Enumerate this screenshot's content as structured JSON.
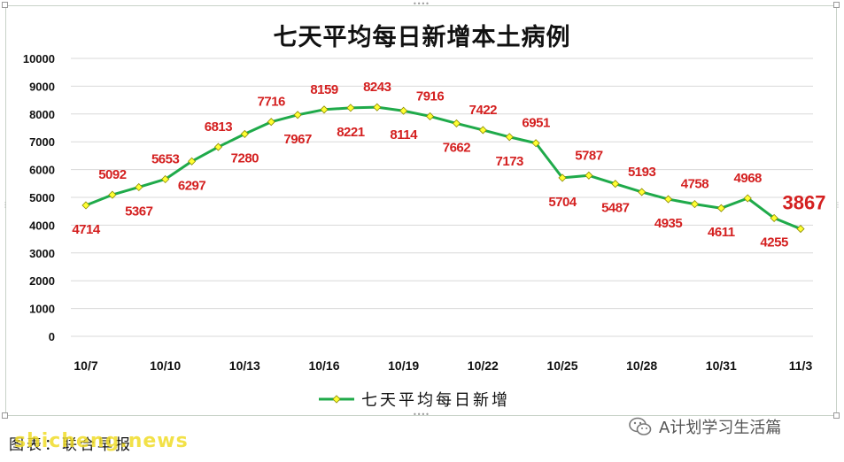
{
  "chart_data": {
    "type": "line",
    "title": "七天平均每日新增本土病例",
    "x": [
      "10/7",
      "10/8",
      "10/9",
      "10/10",
      "10/11",
      "10/12",
      "10/13",
      "10/14",
      "10/15",
      "10/16",
      "10/17",
      "10/18",
      "10/19",
      "10/20",
      "10/21",
      "10/22",
      "10/23",
      "10/24",
      "10/25",
      "10/26",
      "10/27",
      "10/28",
      "10/29",
      "10/30",
      "10/31",
      "11/1",
      "11/2",
      "11/3"
    ],
    "x_tick_labels": [
      "10/7",
      "10/10",
      "10/13",
      "10/16",
      "10/19",
      "10/22",
      "10/25",
      "10/28",
      "10/31",
      "11/3"
    ],
    "series": [
      {
        "name": "七天平均每日新增",
        "values": [
          4714,
          5092,
          5367,
          5653,
          6297,
          6813,
          7280,
          7716,
          7967,
          8159,
          8221,
          8243,
          8114,
          7916,
          7662,
          7422,
          7173,
          6951,
          5704,
          5787,
          5487,
          5193,
          4935,
          4758,
          4611,
          4968,
          4255,
          3867
        ]
      }
    ],
    "y_ticks": [
      0,
      1000,
      2000,
      3000,
      4000,
      5000,
      6000,
      7000,
      8000,
      9000,
      10000
    ],
    "ylim": [
      0,
      10000
    ],
    "grid": true,
    "legend_position": "bottom",
    "xlabel": "",
    "ylabel": ""
  },
  "colors": {
    "line": "#1faa4a",
    "marker": "#ffff33",
    "marker_stroke": "#8a8a00",
    "label": "#d42020",
    "grid": "#d9d9d9"
  },
  "footer": {
    "source": "图表：联合早报",
    "watermark": "shicheng.news",
    "wechat": "A计划学习生活篇"
  }
}
